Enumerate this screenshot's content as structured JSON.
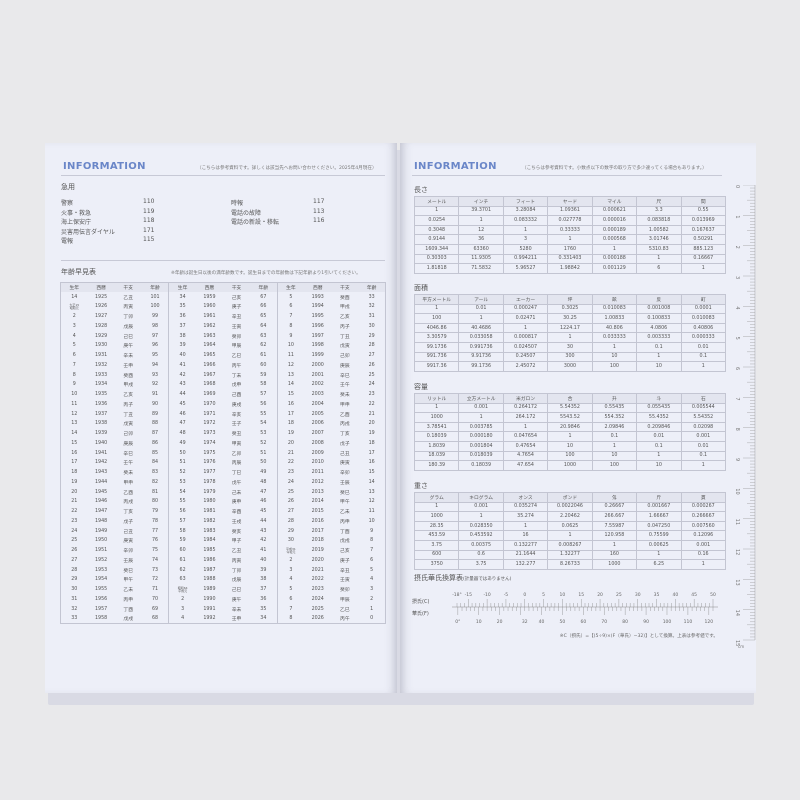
{
  "left": {
    "header": "INFORMATION",
    "note": "（こちらは参考資料です。詳しくは該当先へお問い合わせください。2025年4月現在）",
    "emergency": {
      "title": "急用",
      "col1": [
        {
          "label": "警察",
          "num": "110"
        },
        {
          "label": "火事・救急",
          "num": "119"
        },
        {
          "label": "海上保安庁",
          "num": "118"
        },
        {
          "label": "災害用伝言ダイヤル",
          "num": "171"
        },
        {
          "label": "電報",
          "num": "115"
        }
      ],
      "col2": [
        {
          "label": "時報",
          "num": "117"
        },
        {
          "label": "電話の故障",
          "num": "113"
        },
        {
          "label": "電話の新設・移転",
          "num": "116"
        }
      ]
    },
    "ages": {
      "title": "年齢早見表",
      "note": "※年齢は誕生日以後の満年齢数です。誕生日までの年齢数は下記年齢より1引いてください。",
      "headers": [
        "生年",
        "西暦",
        "干支",
        "年齢"
      ],
      "groups": [
        [
          [
            "14",
            "1925",
            "乙丑",
            "101"
          ],
          [
            "大正15/昭和元",
            "1926",
            "丙寅",
            "100"
          ],
          [
            "2",
            "1927",
            "丁卯",
            "99"
          ],
          [
            "3",
            "1928",
            "戊辰",
            "98"
          ],
          [
            "4",
            "1929",
            "己巳",
            "97"
          ],
          [
            "5",
            "1930",
            "庚午",
            "96"
          ],
          [
            "6",
            "1931",
            "辛未",
            "95"
          ],
          [
            "7",
            "1932",
            "壬申",
            "94"
          ],
          [
            "8",
            "1933",
            "癸酉",
            "93"
          ],
          [
            "9",
            "1934",
            "甲戌",
            "92"
          ],
          [
            "10",
            "1935",
            "乙亥",
            "91"
          ],
          [
            "11",
            "1936",
            "丙子",
            "90"
          ],
          [
            "12",
            "1937",
            "丁丑",
            "89"
          ],
          [
            "13",
            "1938",
            "戊寅",
            "88"
          ],
          [
            "14",
            "1939",
            "己卯",
            "87"
          ],
          [
            "15",
            "1940",
            "庚辰",
            "86"
          ],
          [
            "16",
            "1941",
            "辛巳",
            "85"
          ],
          [
            "17",
            "1942",
            "壬午",
            "84"
          ],
          [
            "18",
            "1943",
            "癸未",
            "83"
          ],
          [
            "19",
            "1944",
            "甲申",
            "82"
          ],
          [
            "20",
            "1945",
            "乙酉",
            "81"
          ],
          [
            "21",
            "1946",
            "丙戌",
            "80"
          ],
          [
            "22",
            "1947",
            "丁亥",
            "79"
          ],
          [
            "23",
            "1948",
            "戊子",
            "78"
          ],
          [
            "24",
            "1949",
            "己丑",
            "77"
          ],
          [
            "25",
            "1950",
            "庚寅",
            "76"
          ],
          [
            "26",
            "1951",
            "辛卯",
            "75"
          ],
          [
            "27",
            "1952",
            "壬辰",
            "74"
          ],
          [
            "28",
            "1953",
            "癸巳",
            "73"
          ],
          [
            "29",
            "1954",
            "甲午",
            "72"
          ],
          [
            "30",
            "1955",
            "乙未",
            "71"
          ],
          [
            "31",
            "1956",
            "丙申",
            "70"
          ],
          [
            "32",
            "1957",
            "丁酉",
            "69"
          ],
          [
            "33",
            "1958",
            "戊戌",
            "68"
          ]
        ],
        [
          [
            "34",
            "1959",
            "己亥",
            "67"
          ],
          [
            "35",
            "1960",
            "庚子",
            "66"
          ],
          [
            "36",
            "1961",
            "辛丑",
            "65"
          ],
          [
            "37",
            "1962",
            "壬寅",
            "64"
          ],
          [
            "38",
            "1963",
            "癸卯",
            "63"
          ],
          [
            "39",
            "1964",
            "甲辰",
            "62"
          ],
          [
            "40",
            "1965",
            "乙巳",
            "61"
          ],
          [
            "41",
            "1966",
            "丙午",
            "60"
          ],
          [
            "42",
            "1967",
            "丁未",
            "59"
          ],
          [
            "43",
            "1968",
            "戊申",
            "58"
          ],
          [
            "44",
            "1969",
            "己酉",
            "57"
          ],
          [
            "45",
            "1970",
            "庚戌",
            "56"
          ],
          [
            "46",
            "1971",
            "辛亥",
            "55"
          ],
          [
            "47",
            "1972",
            "壬子",
            "54"
          ],
          [
            "48",
            "1973",
            "癸丑",
            "53"
          ],
          [
            "49",
            "1974",
            "甲寅",
            "52"
          ],
          [
            "50",
            "1975",
            "乙卯",
            "51"
          ],
          [
            "51",
            "1976",
            "丙辰",
            "50"
          ],
          [
            "52",
            "1977",
            "丁巳",
            "49"
          ],
          [
            "53",
            "1978",
            "戊午",
            "48"
          ],
          [
            "54",
            "1979",
            "己未",
            "47"
          ],
          [
            "55",
            "1980",
            "庚申",
            "46"
          ],
          [
            "56",
            "1981",
            "辛酉",
            "45"
          ],
          [
            "57",
            "1982",
            "壬戌",
            "44"
          ],
          [
            "58",
            "1983",
            "癸亥",
            "43"
          ],
          [
            "59",
            "1984",
            "甲子",
            "42"
          ],
          [
            "60",
            "1985",
            "乙丑",
            "41"
          ],
          [
            "61",
            "1986",
            "丙寅",
            "40"
          ],
          [
            "62",
            "1987",
            "丁卯",
            "39"
          ],
          [
            "63",
            "1988",
            "戊辰",
            "38"
          ],
          [
            "昭和64/平成元",
            "1989",
            "己巳",
            "37"
          ],
          [
            "2",
            "1990",
            "庚午",
            "36"
          ],
          [
            "3",
            "1991",
            "辛未",
            "35"
          ],
          [
            "4",
            "1992",
            "壬申",
            "34"
          ]
        ],
        [
          [
            "5",
            "1993",
            "癸酉",
            "33"
          ],
          [
            "6",
            "1994",
            "甲戌",
            "32"
          ],
          [
            "7",
            "1995",
            "乙亥",
            "31"
          ],
          [
            "8",
            "1996",
            "丙子",
            "30"
          ],
          [
            "9",
            "1997",
            "丁丑",
            "29"
          ],
          [
            "10",
            "1998",
            "戊寅",
            "28"
          ],
          [
            "11",
            "1999",
            "己卯",
            "27"
          ],
          [
            "12",
            "2000",
            "庚辰",
            "26"
          ],
          [
            "13",
            "2001",
            "辛巳",
            "25"
          ],
          [
            "14",
            "2002",
            "壬午",
            "24"
          ],
          [
            "15",
            "2003",
            "癸未",
            "23"
          ],
          [
            "16",
            "2004",
            "甲申",
            "22"
          ],
          [
            "17",
            "2005",
            "乙酉",
            "21"
          ],
          [
            "18",
            "2006",
            "丙戌",
            "20"
          ],
          [
            "19",
            "2007",
            "丁亥",
            "19"
          ],
          [
            "20",
            "2008",
            "戊子",
            "18"
          ],
          [
            "21",
            "2009",
            "己丑",
            "17"
          ],
          [
            "22",
            "2010",
            "庚寅",
            "16"
          ],
          [
            "23",
            "2011",
            "辛卯",
            "15"
          ],
          [
            "24",
            "2012",
            "壬辰",
            "14"
          ],
          [
            "25",
            "2013",
            "癸巳",
            "13"
          ],
          [
            "26",
            "2014",
            "甲午",
            "12"
          ],
          [
            "27",
            "2015",
            "乙未",
            "11"
          ],
          [
            "28",
            "2016",
            "丙申",
            "10"
          ],
          [
            "29",
            "2017",
            "丁酉",
            "9"
          ],
          [
            "30",
            "2018",
            "戊戌",
            "8"
          ],
          [
            "平成31/令和元",
            "2019",
            "己亥",
            "7"
          ],
          [
            "2",
            "2020",
            "庚子",
            "6"
          ],
          [
            "3",
            "2021",
            "辛丑",
            "5"
          ],
          [
            "4",
            "2022",
            "壬寅",
            "4"
          ],
          [
            "5",
            "2023",
            "癸卯",
            "3"
          ],
          [
            "6",
            "2024",
            "甲辰",
            "2"
          ],
          [
            "7",
            "2025",
            "乙巳",
            "1"
          ],
          [
            "8",
            "2026",
            "丙午",
            "0"
          ]
        ]
      ]
    }
  },
  "right": {
    "header": "INFORMATION",
    "note": "（こちらは参考資料です。小数点以下の数字の取り方で多少違ってくる場合もあります。）",
    "tables": [
      {
        "title": "長さ",
        "headers": [
          "メートル",
          "インチ",
          "フィート",
          "ヤード",
          "マイル",
          "尺",
          "間"
        ],
        "rows": [
          [
            "1",
            "39.3701",
            "3.28084",
            "1.09361",
            "0.000621",
            "3.3",
            "0.55"
          ],
          [
            "0.0254",
            "1",
            "0.083332",
            "0.027778",
            "0.000016",
            "0.083818",
            "0.013969"
          ],
          [
            "0.3048",
            "12",
            "1",
            "0.33333",
            "0.000189",
            "1.00582",
            "0.167637"
          ],
          [
            "0.9144",
            "36",
            "3",
            "1",
            "0.000568",
            "3.01746",
            "0.50291"
          ],
          [
            "1609.344",
            "63360",
            "5280",
            "1760",
            "1",
            "5310.83",
            "885.123"
          ],
          [
            "0.30303",
            "11.9305",
            "0.994211",
            "0.331403",
            "0.000188",
            "1",
            "0.16667"
          ],
          [
            "1.81818",
            "71.5832",
            "5.96527",
            "1.98842",
            "0.001129",
            "6",
            "1"
          ]
        ]
      },
      {
        "title": "面積",
        "headers": [
          "平方メートル",
          "アール",
          "エーカー",
          "坪",
          "畝",
          "反",
          "町"
        ],
        "rows": [
          [
            "1",
            "0.01",
            "0.000247",
            "0.3025",
            "0.010083",
            "0.001008",
            "0.0001"
          ],
          [
            "100",
            "1",
            "0.02471",
            "30.25",
            "1.00833",
            "0.100833",
            "0.010083"
          ],
          [
            "4046.86",
            "40.4686",
            "1",
            "1224.17",
            "40.806",
            "4.0806",
            "0.40806"
          ],
          [
            "3.30579",
            "0.033058",
            "0.000817",
            "1",
            "0.033333",
            "0.003333",
            "0.000333"
          ],
          [
            "99.1736",
            "0.991736",
            "0.024507",
            "30",
            "1",
            "0.1",
            "0.01"
          ],
          [
            "991.736",
            "9.91736",
            "0.24507",
            "300",
            "10",
            "1",
            "0.1"
          ],
          [
            "9917.36",
            "99.1736",
            "2.45072",
            "3000",
            "100",
            "10",
            "1"
          ]
        ]
      },
      {
        "title": "容量",
        "headers": [
          "リットル",
          "立方メートル",
          "米ガロン",
          "合",
          "升",
          "斗",
          "石"
        ],
        "rows": [
          [
            "1",
            "0.001",
            "0.264172",
            "5.54352",
            "0.55435",
            "0.055435",
            "0.005544"
          ],
          [
            "1000",
            "1",
            "264.172",
            "5543.52",
            "554.352",
            "55.4352",
            "5.54352"
          ],
          [
            "3.78541",
            "0.003785",
            "1",
            "20.9846",
            "2.09846",
            "0.209846",
            "0.02098"
          ],
          [
            "0.18039",
            "0.000180",
            "0.047654",
            "1",
            "0.1",
            "0.01",
            "0.001"
          ],
          [
            "1.8039",
            "0.001804",
            "0.47654",
            "10",
            "1",
            "0.1",
            "0.01"
          ],
          [
            "18.039",
            "0.018039",
            "4.7654",
            "100",
            "10",
            "1",
            "0.1"
          ],
          [
            "180.39",
            "0.18039",
            "47.654",
            "1000",
            "100",
            "10",
            "1"
          ]
        ]
      },
      {
        "title": "重さ",
        "headers": [
          "グラム",
          "キログラム",
          "オンス",
          "ポンド",
          "匁",
          "斤",
          "貫"
        ],
        "rows": [
          [
            "1",
            "0.001",
            "0.035274",
            "0.0022046",
            "0.26667",
            "0.001667",
            "0.000267"
          ],
          [
            "1000",
            "1",
            "35.274",
            "2.20462",
            "266.667",
            "1.66667",
            "0.266667"
          ],
          [
            "28.35",
            "0.028350",
            "1",
            "0.0625",
            "7.55987",
            "0.047250",
            "0.007560"
          ],
          [
            "453.59",
            "0.453592",
            "16",
            "1",
            "120.958",
            "0.75599",
            "0.12096"
          ],
          [
            "3.75",
            "0.00375",
            "0.132277",
            "0.008267",
            "1",
            "0.00625",
            "0.001"
          ],
          [
            "600",
            "0.6",
            "21.1644",
            "1.32277",
            "160",
            "1",
            "0.16"
          ],
          [
            "3750",
            "3.75",
            "132.277",
            "8.26733",
            "1000",
            "6.25",
            "1"
          ]
        ]
      }
    ],
    "temp": {
      "title": "摂氏華氏換算表",
      "subtitle": "(計量器ではありません)",
      "c_label": "摂氏(C)",
      "f_label": "華氏(F)",
      "c_ticks": [
        "-18°",
        "-15",
        "-10",
        "-5",
        "0",
        "5",
        "10",
        "15",
        "20",
        "25",
        "30",
        "35",
        "40",
        "45",
        "50"
      ],
      "f_ticks": [
        "0°",
        "10",
        "20",
        "32",
        "40",
        "50",
        "60",
        "70",
        "80",
        "90",
        "100",
        "110",
        "120"
      ],
      "footnote": "※C（摂氏）=【(5÷9)×(F（華氏）−32)】として換算。上表は参考値です。"
    },
    "ruler": {
      "labels": [
        "0",
        "1",
        "2",
        "3",
        "4",
        "5",
        "6",
        "7",
        "8",
        "9",
        "10",
        "11",
        "12",
        "13",
        "14",
        "15"
      ],
      "unit": "cm"
    }
  }
}
